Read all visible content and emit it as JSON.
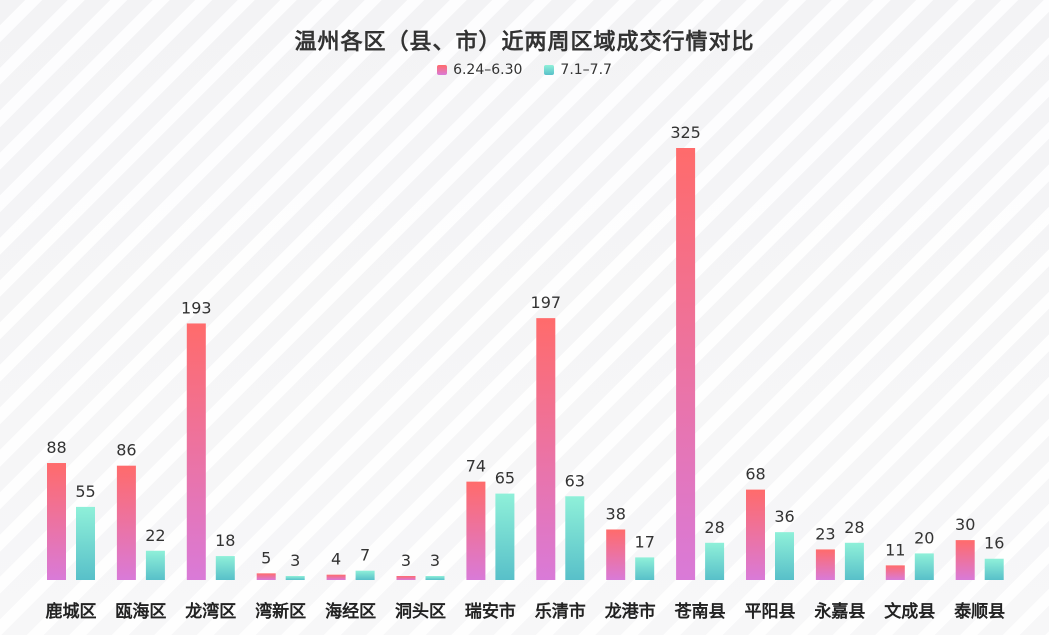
{
  "chart_data": {
    "type": "bar",
    "title": "温州各区（县、市）近两周区域成交行情对比",
    "categories": [
      "鹿城区",
      "瓯海区",
      "龙湾区",
      "湾新区",
      "海经区",
      "洞头区",
      "瑞安市",
      "乐清市",
      "龙港市",
      "苍南县",
      "平阳县",
      "永嘉县",
      "文成县",
      "泰顺县"
    ],
    "series": [
      {
        "name": "6.24–6.30",
        "values": [
          88,
          86,
          193,
          5,
          4,
          3,
          74,
          197,
          38,
          325,
          68,
          23,
          11,
          30
        ],
        "colors": [
          "#ff6b6b",
          "#d97ad8"
        ]
      },
      {
        "name": "7.1–7.7",
        "values": [
          55,
          22,
          18,
          3,
          7,
          3,
          65,
          63,
          17,
          28,
          36,
          28,
          20,
          16
        ],
        "colors": [
          "#8ff0d9",
          "#58c0c9"
        ]
      }
    ],
    "ylim": [
      0,
      325
    ],
    "grid": false,
    "legend_position": "top-center"
  }
}
